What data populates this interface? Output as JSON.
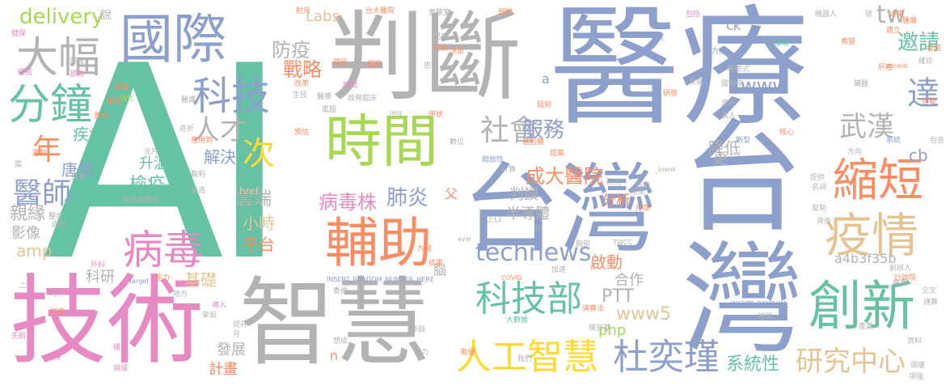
{
  "palette": {
    "teal": "#66c2a5",
    "orange": "#fc8d62",
    "blue": "#8da0cb",
    "pink": "#e78ac3",
    "green": "#a6d854",
    "yellow": "#ffd92f",
    "tan": "#e5c494",
    "gray": "#b3b3b3"
  },
  "words": {
    "ai": "AI",
    "yiliao": "醫療",
    "taiwan": "台灣",
    "panduan": "判斷",
    "jishu": "技術",
    "zhihui": "智慧",
    "guoji": "國際",
    "shijian": "時間",
    "dafu": "大幅",
    "fenzhong": "分鐘",
    "chuangxin": "創新",
    "yiqing": "疫情",
    "suoduan": "縮短",
    "fuzhu": "輔助",
    "bingdu": "病毒",
    "keji": "科技",
    "kejibu": "科技部",
    "rengong": "人工智慧",
    "duyijin": "杜奕瑾",
    "yanjiu": "研究中心",
    "shehui": "社會",
    "ci": "次",
    "nian": "年",
    "yishi": "醫師",
    "rencai": "人才",
    "wuhan": "武漢",
    "da": "達",
    "technews": "technews",
    "feiyan": "肺炎",
    "bingduzhu": "病毒株",
    "chengda": "成大醫院",
    "fuwu": "服務",
    "www": "www",
    "tw": "tw",
    "yaoqing": "邀請",
    "delivery": "delivery",
    "fangyi": "防疫",
    "zhanlue": "戰略",
    "jiejue": "解決",
    "jiangdi": "降低",
    "jibing": "疾病",
    "tangfeng": "唐鳳",
    "jianyi": "檢疫",
    "shengwen": "升溫",
    "yunduan": "雲端",
    "qinyuan": "親緣",
    "yingxiang": "影像",
    "amp": "amp",
    "xiaoshi": "小時",
    "pingtai": "平台",
    "kejiyan": "科研",
    "jichu": "基礎",
    "fazhan": "發展",
    "jihua": "計畫",
    "labs": "Labs",
    "href": "href",
    "pandu": "判讀",
    "bandaoti": "半導體",
    "fenxi": "分析",
    "ptt": "PTT",
    "qidong": "啟動",
    "hezuo": "合作",
    "www5": "www5",
    "php": "php",
    "xitongxing": "系統性",
    "cb": "cb",
    "a4b3": "a4b3f35b",
    "geng": "更",
    "ck": "ck",
    "fu": "父",
    "nao": "腦",
    "shuo": "說",
    "xingkong": "INSERT_RANDOM_NUMBER_HERE",
    "insert2": "INSERT_RANDOM_",
    "blank": "_blank",
    "covid": "COVID",
    "twcc": "TWCC",
    "img": "img",
    "avw": "avw",
    "target": "target",
    "src": "src",
    "zoneid": "zoneid",
    "n": "n",
    "a": "a",
    "small": [
      "健保",
      "畫面",
      "部長",
      "擬度",
      "醫院",
      "時間",
      "醫療",
      "優質",
      "資訊",
      "強化",
      "蓬勃",
      "射月",
      "台大醫院",
      "實驗室",
      "開門",
      "包括",
      "機器人",
      "號",
      "遠東",
      "建立",
      "希望",
      "方案",
      "環境",
      "國衛院",
      "驅動式",
      "電腦",
      "臨床",
      "政務",
      "甲狀",
      "基因體",
      "開放性",
      "計算",
      "提供",
      "名詞",
      "核心",
      "系統",
      "包含",
      "新型",
      "方向",
      "生技",
      "改革",
      "奇折",
      "預估",
      "應用到",
      "光片",
      "榮民總醫院",
      "經驗",
      "專業",
      "創辦人",
      "行政院",
      "交叉",
      "謹算",
      "九成",
      "成果",
      "加速",
      "胸部",
      "委員",
      "參與",
      "聚力",
      "軟硬",
      "大數據",
      "演算法",
      "陳良基",
      "期間",
      "資料",
      "頭痛",
      "項強",
      "想成",
      "提升",
      "架設",
      "先前",
      "打造",
      "外科",
      "能力",
      "地方",
      "播台",
      "領域",
      "瘦身",
      "導入",
      "整合",
      "調劑",
      "醫護",
      "鞠躬",
      "製造",
      "國民",
      "超級",
      "提到",
      "冠狀",
      "決策",
      "思考",
      "帶來",
      "研究",
      "打底",
      "幫助",
      "背後",
      "提案",
      "延到",
      "數位",
      "上口",
      "非",
      "我們",
      "發展",
      "研發",
      "遠距",
      "病人",
      "臟器",
      "肝癌",
      "腫瘤",
      "疫苗",
      "確診",
      "智能",
      "月",
      "二",
      "可",
      "需",
      "既有",
      "產業",
      "趨勢",
      "系統化"
    ]
  }
}
